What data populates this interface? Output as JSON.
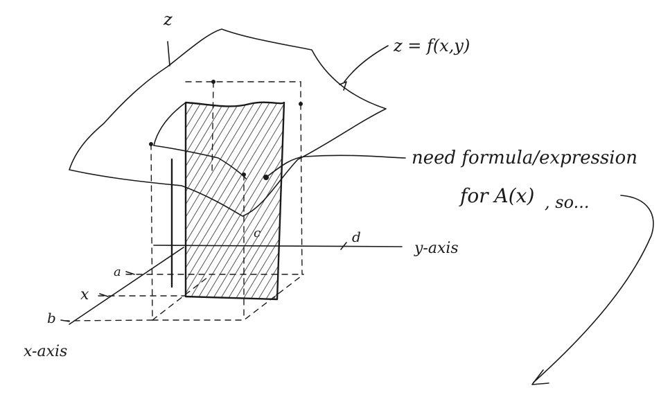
{
  "labels": {
    "z_axis": "z",
    "surface": "z = f(x,y)",
    "note_line1": "need formula/expression",
    "note_line2": "for A(x)",
    "note_suffix": ", so...",
    "y_axis": "y-axis",
    "x_axis": "x-axis",
    "a": "a",
    "b": "b",
    "c": "c",
    "d": "d",
    "x": "x"
  }
}
